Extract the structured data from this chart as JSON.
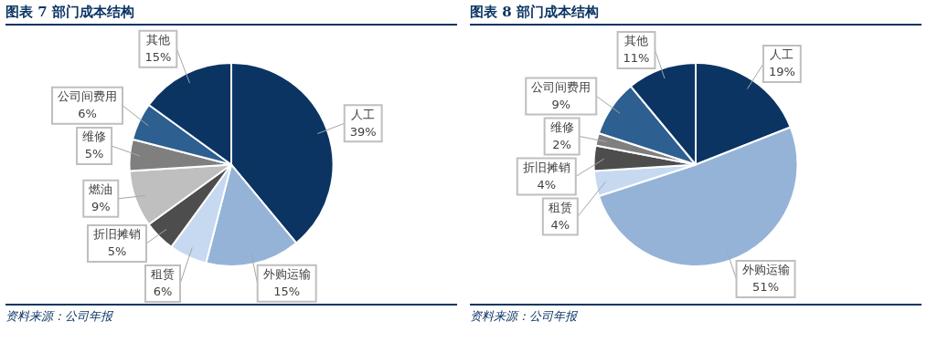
{
  "chart_data": [
    {
      "type": "pie",
      "title": "图表 7 部门成本结构",
      "categories": [
        "人工",
        "外购运输",
        "租赁",
        "折旧摊销",
        "燃油",
        "维修",
        "公司间费用",
        "其他"
      ],
      "values": [
        39,
        15,
        6,
        5,
        9,
        5,
        6,
        15
      ],
      "value_labels": [
        "39%",
        "15%",
        "6%",
        "5%",
        "9%",
        "5%",
        "6%",
        "15%"
      ],
      "colors": [
        "#0b3463",
        "#95b3d7",
        "#c6d9f1",
        "#4d4d4d",
        "#bfbfbf",
        "#7f7f7f",
        "#2d5f91",
        "#0b3463"
      ],
      "annotations": [
        "资料来源：公司年报"
      ]
    },
    {
      "type": "pie",
      "title": "图表 8 部门成本结构",
      "categories": [
        "人工",
        "外购运输",
        "租赁",
        "折旧摊销",
        "维修",
        "公司间费用",
        "其他"
      ],
      "values": [
        19,
        51,
        4,
        4,
        2,
        9,
        11
      ],
      "value_labels": [
        "19%",
        "51%",
        "4%",
        "4%",
        "2%",
        "9%",
        "11%"
      ],
      "colors": [
        "#0b3463",
        "#95b3d7",
        "#c6d9f1",
        "#4d4d4d",
        "#7f7f7f",
        "#2d5f91",
        "#0b3463"
      ],
      "annotations": [
        "资料来源：公司年报"
      ]
    }
  ]
}
